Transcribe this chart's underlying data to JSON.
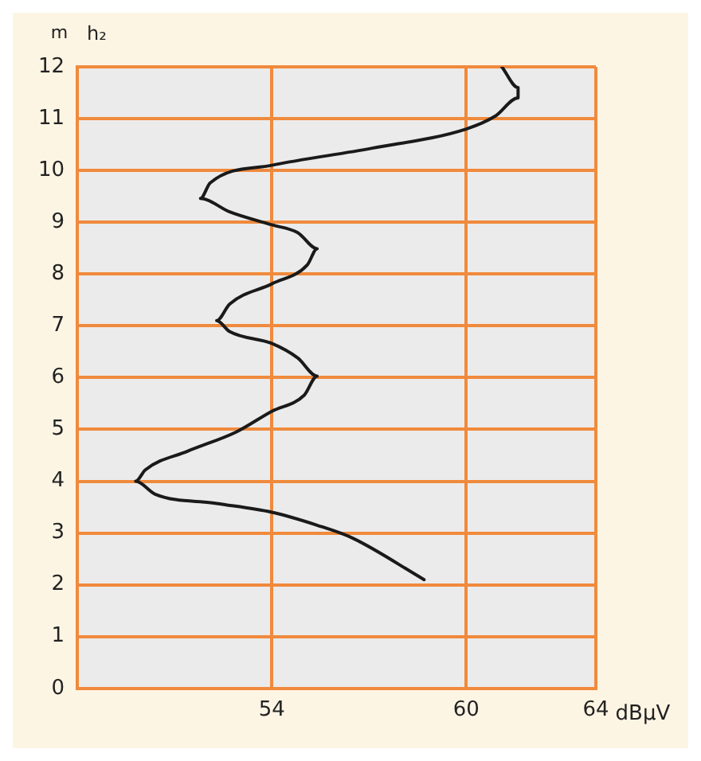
{
  "chart_data": {
    "type": "line",
    "xlabel": "dBµV",
    "ylabel": "h₂",
    "annotations": [
      "m"
    ],
    "x": [
      58.7,
      56.5,
      55.4,
      54.0,
      52.3,
      50.4,
      49.8,
      50.1,
      51.4,
      52.9,
      54.0,
      55.0,
      55.4,
      54.8,
      54.0,
      52.7,
      52.3,
      52.7,
      54.0,
      55.1,
      55.4,
      54.8,
      54.0,
      52.7,
      51.8,
      52.1,
      54.0,
      57.1,
      60.0,
      60.9,
      61.6,
      61.6,
      61.1
    ],
    "series": [
      {
        "color": "#1a1a1a",
        "values": [
          2.1,
          2.9,
          3.15,
          3.4,
          3.57,
          3.75,
          4.0,
          4.22,
          4.58,
          4.95,
          5.35,
          5.66,
          6.03,
          6.38,
          6.66,
          6.89,
          7.1,
          7.42,
          7.81,
          8.18,
          8.49,
          8.8,
          8.95,
          9.2,
          9.46,
          9.76,
          10.1,
          10.43,
          10.8,
          11.05,
          11.4,
          11.6,
          12.0
        ]
      }
    ],
    "xlim": [
      48,
      64
    ],
    "xticks": [
      54,
      60,
      64
    ],
    "ylim": [
      0,
      12
    ],
    "yticks": [
      0,
      1,
      2,
      3,
      4,
      5,
      6,
      7,
      8,
      9,
      10,
      11,
      12
    ],
    "grid": true,
    "legend": false,
    "marker": "none",
    "line_style": "solid"
  }
}
